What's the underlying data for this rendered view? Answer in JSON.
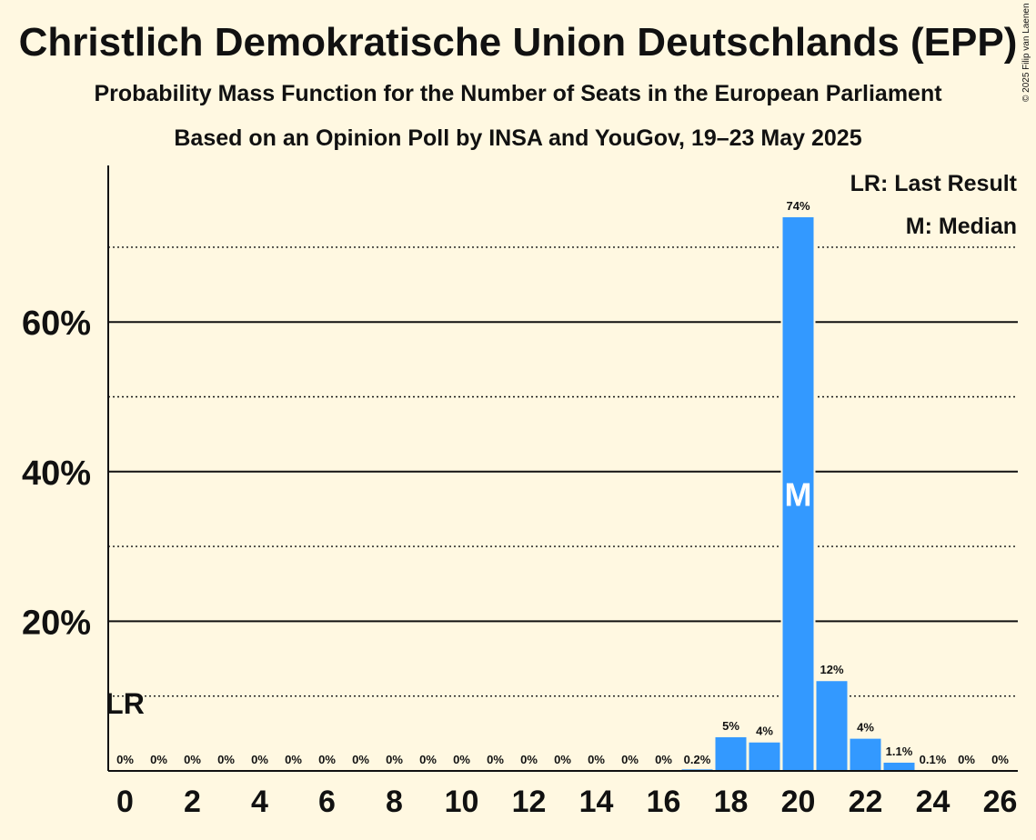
{
  "title": "Christlich Demokratische Union Deutschlands (EPP)",
  "subtitle": "Probability Mass Function for the Number of Seats in the European Parliament",
  "subtitle2": "Based on an Opinion Poll by INSA and YouGov, 19–23 May 2025",
  "copyright": "© 2025 Filip van Laenen",
  "legend": {
    "last_result": "LR: Last Result",
    "median": "M: Median"
  },
  "colors": {
    "bar": "#3399FF",
    "background": "#FFF8E1"
  },
  "chart_data": {
    "type": "bar",
    "x": [
      0,
      1,
      2,
      3,
      4,
      5,
      6,
      7,
      8,
      9,
      10,
      11,
      12,
      13,
      14,
      15,
      16,
      17,
      18,
      19,
      20,
      21,
      22,
      23,
      24,
      25,
      26
    ],
    "values": [
      0,
      0,
      0,
      0,
      0,
      0,
      0,
      0,
      0,
      0,
      0,
      0,
      0,
      0,
      0,
      0,
      0,
      0.2,
      4.5,
      3.8,
      74,
      12,
      4.3,
      1.1,
      0.1,
      0,
      0
    ],
    "labels": [
      "0%",
      "0%",
      "0%",
      "0%",
      "0%",
      "0%",
      "0%",
      "0%",
      "0%",
      "0%",
      "0%",
      "0%",
      "0%",
      "0%",
      "0%",
      "0%",
      "0%",
      "0.2%",
      "5%",
      "4%",
      "74%",
      "12%",
      "4%",
      "1.1%",
      "0.1%",
      "0%",
      "0%"
    ],
    "x_tick_labels": [
      "0",
      "2",
      "4",
      "6",
      "8",
      "10",
      "12",
      "14",
      "16",
      "18",
      "20",
      "22",
      "24",
      "26"
    ],
    "y_tick_labels": [
      "20%",
      "40%",
      "60%"
    ],
    "y_major_ticks": [
      20,
      40,
      60
    ],
    "y_minor_ticks": [
      10,
      30,
      50,
      70
    ],
    "ylim": [
      0,
      81
    ],
    "median": 20,
    "median_label": "M",
    "last_result": 0,
    "last_result_label": "LR",
    "grid": true,
    "legend_position": "top-right"
  }
}
